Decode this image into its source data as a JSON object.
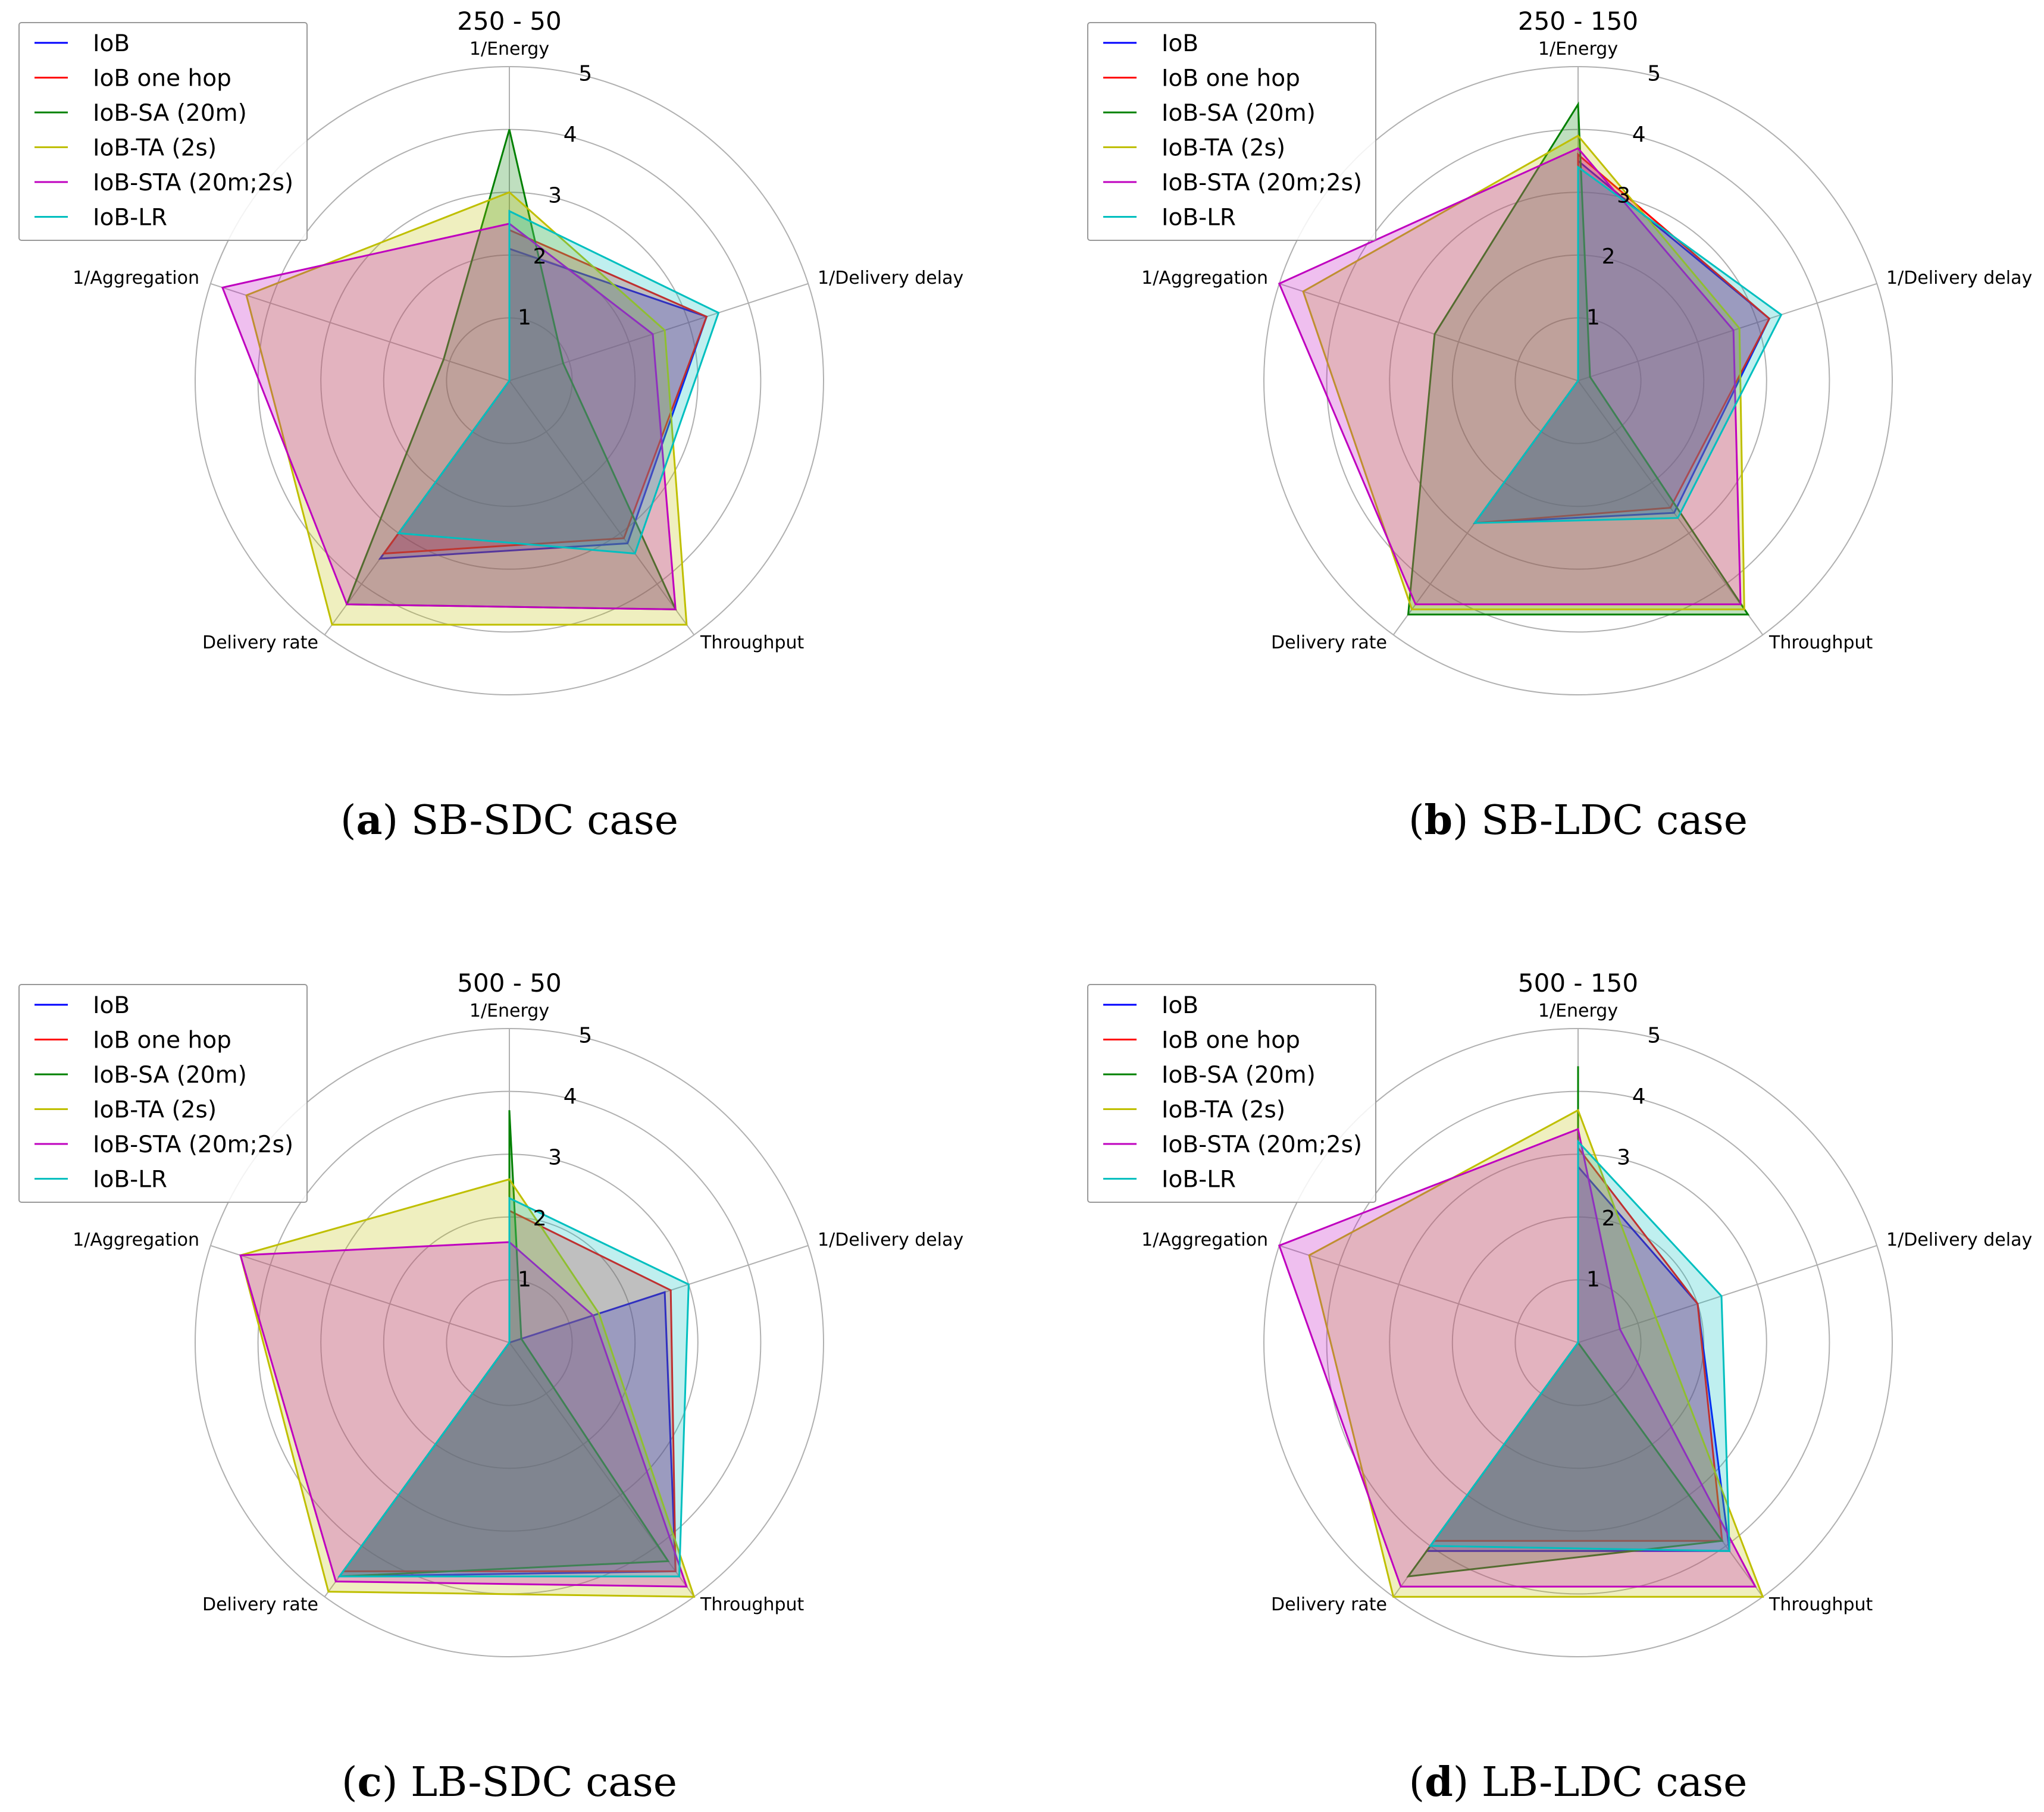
{
  "colors": {
    "IoB": "#0000ff",
    "IoB one hop": "#ff0000",
    "IoB-SA (20m)": "#008000",
    "IoB-TA (2s)": "#bfbf00",
    "IoB-STA (20m;2s)": "#bf00bf",
    "IoB-LR": "#00bfbf",
    "grid": "#b0b0b0"
  },
  "chart_data": [
    {
      "type": "radar",
      "title": "250 - 50",
      "caption_key": "a",
      "caption_text": "SB-SDC case",
      "axes": [
        "1/Energy",
        "1/Delivery delay",
        "Throughput",
        "Delivery rate",
        "1/Aggregation"
      ],
      "rlim": [
        0,
        5
      ],
      "rticks": [
        "1",
        "2",
        "3",
        "4",
        "5"
      ],
      "legend": "top-left",
      "series": [
        {
          "name": "IoB",
          "values": [
            2.1,
            3.3,
            3.2,
            3.5,
            0.0
          ]
        },
        {
          "name": "IoB one hop",
          "values": [
            2.4,
            3.3,
            3.1,
            3.4,
            0.0
          ]
        },
        {
          "name": "IoB-SA (20m)",
          "values": [
            4.0,
            0.9,
            4.5,
            4.4,
            1.1
          ]
        },
        {
          "name": "IoB-TA (2s)",
          "values": [
            3.0,
            2.6,
            4.8,
            4.8,
            4.4
          ]
        },
        {
          "name": "IoB-STA (20m;2s)",
          "values": [
            2.5,
            2.4,
            4.5,
            4.4,
            4.8
          ]
        },
        {
          "name": "IoB-LR",
          "values": [
            2.7,
            3.5,
            3.4,
            3.0,
            0.0
          ]
        }
      ]
    },
    {
      "type": "radar",
      "title": "250 - 150",
      "caption_key": "b",
      "caption_text": "SB-LDC case",
      "axes": [
        "1/Energy",
        "1/Delivery delay",
        "Throughput",
        "Delivery rate",
        "1/Aggregation"
      ],
      "rlim": [
        0,
        5
      ],
      "rticks": [
        "1",
        "2",
        "3",
        "4",
        "5"
      ],
      "legend": "top-left",
      "series": [
        {
          "name": "IoB",
          "values": [
            3.5,
            3.2,
            2.6,
            2.8,
            0.0
          ]
        },
        {
          "name": "IoB one hop",
          "values": [
            3.6,
            3.2,
            2.5,
            2.8,
            0.0
          ]
        },
        {
          "name": "IoB-SA (20m)",
          "values": [
            4.4,
            0.2,
            4.6,
            4.6,
            2.4
          ]
        },
        {
          "name": "IoB-TA (2s)",
          "values": [
            3.9,
            2.7,
            4.5,
            4.5,
            4.6
          ]
        },
        {
          "name": "IoB-STA (20m;2s)",
          "values": [
            3.7,
            2.6,
            4.4,
            4.4,
            5.0
          ]
        },
        {
          "name": "IoB-LR",
          "values": [
            3.4,
            3.4,
            2.7,
            2.8,
            0.0
          ]
        }
      ]
    },
    {
      "type": "radar",
      "title": "500 - 50",
      "caption_key": "c",
      "caption_text": "LB-SDC case",
      "axes": [
        "1/Energy",
        "1/Delivery delay",
        "Throughput",
        "Delivery rate",
        "1/Aggregation"
      ],
      "rlim": [
        0,
        5
      ],
      "rticks": [
        "1",
        "2",
        "3",
        "4",
        "5"
      ],
      "legend": "top-left",
      "series": [
        {
          "name": "IoB",
          "values": [
            0.0,
            2.6,
            4.5,
            4.6,
            0.0
          ]
        },
        {
          "name": "IoB one hop",
          "values": [
            2.1,
            2.7,
            4.5,
            4.5,
            0.0
          ]
        },
        {
          "name": "IoB-SA (20m)",
          "values": [
            3.7,
            0.2,
            4.3,
            4.6,
            0.0
          ]
        },
        {
          "name": "IoB-TA (2s)",
          "values": [
            2.6,
            1.5,
            5.0,
            4.9,
            4.5
          ]
        },
        {
          "name": "IoB-STA (20m;2s)",
          "values": [
            1.6,
            1.4,
            4.8,
            4.7,
            4.5
          ]
        },
        {
          "name": "IoB-LR",
          "values": [
            2.3,
            3.0,
            4.6,
            4.6,
            0.0
          ]
        }
      ]
    },
    {
      "type": "radar",
      "title": "500 - 150",
      "caption_key": "d",
      "caption_text": "LB-LDC case",
      "axes": [
        "1/Energy",
        "1/Delivery delay",
        "Throughput",
        "Delivery rate",
        "1/Aggregation"
      ],
      "rlim": [
        0,
        5
      ],
      "rticks": [
        "1",
        "2",
        "3",
        "4",
        "5"
      ],
      "legend": "top-left",
      "series": [
        {
          "name": "IoB",
          "values": [
            2.8,
            2.0,
            4.1,
            4.1,
            0.0
          ]
        },
        {
          "name": "IoB one hop",
          "values": [
            3.1,
            2.0,
            3.9,
            3.9,
            0.0
          ]
        },
        {
          "name": "IoB-SA (20m)",
          "values": [
            4.4,
            0.0,
            3.9,
            4.6,
            0.0
          ]
        },
        {
          "name": "IoB-TA (2s)",
          "values": [
            3.7,
            1.3,
            5.0,
            5.0,
            4.5
          ]
        },
        {
          "name": "IoB-STA (20m;2s)",
          "values": [
            3.4,
            0.7,
            4.8,
            4.8,
            5.0
          ]
        },
        {
          "name": "IoB-LR",
          "values": [
            3.2,
            2.4,
            4.1,
            4.0,
            0.0
          ]
        }
      ]
    }
  ]
}
